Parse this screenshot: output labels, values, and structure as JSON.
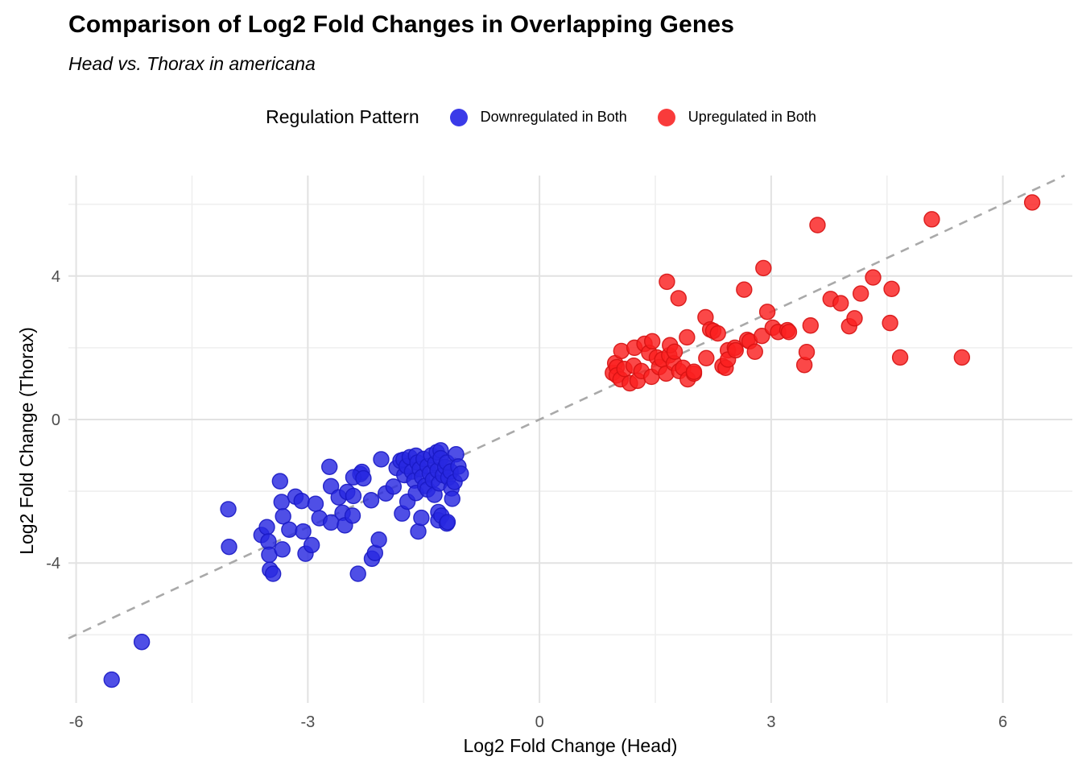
{
  "title": "Comparison of Log2 Fold Changes in Overlapping Genes",
  "subtitle": "Head vs. Thorax in americana",
  "legend": {
    "title": "Regulation Pattern",
    "items": [
      {
        "label": "Downregulated in Both",
        "color": "#3A3AE8"
      },
      {
        "label": "Upregulated in Both",
        "color": "#F93B3B"
      }
    ]
  },
  "chart_data": {
    "type": "scatter",
    "title": "Comparison of Log2 Fold Changes in Overlapping Genes",
    "subtitle": "Head vs. Thorax in americana",
    "xlabel": "Log2 Fold Change (Head)",
    "ylabel": "Log2 Fold Change (Thorax)",
    "xlim": [
      -6.1,
      6.9
    ],
    "ylim": [
      -7.9,
      6.8
    ],
    "x_major_ticks": [
      -6,
      -3,
      0,
      3,
      6
    ],
    "x_minor_ticks": [
      -4.5,
      -1.5,
      1.5,
      4.5
    ],
    "y_major_ticks": [
      -4,
      0,
      4
    ],
    "y_minor_ticks": [
      -6,
      -2,
      2,
      6
    ],
    "grid": true,
    "legend_position": "top",
    "identity_line": {
      "style": "dashed",
      "color": "#A9A9A9",
      "from": [
        -6.1,
        -6.1
      ],
      "to": [
        6.8,
        6.8
      ]
    },
    "series": [
      {
        "name": "Downregulated in Both",
        "color": "#2828E0",
        "stroke": "#1A1AC4",
        "points": [
          [
            -5.54,
            -7.25
          ],
          [
            -5.15,
            -6.2
          ],
          [
            -4.03,
            -2.5
          ],
          [
            -4.02,
            -3.55
          ],
          [
            -3.6,
            -3.22
          ],
          [
            -3.53,
            -3.0
          ],
          [
            -3.51,
            -3.4
          ],
          [
            -3.5,
            -3.77
          ],
          [
            -3.49,
            -4.19
          ],
          [
            -3.45,
            -4.3
          ],
          [
            -3.36,
            -1.72
          ],
          [
            -3.34,
            -2.3
          ],
          [
            -3.32,
            -2.7
          ],
          [
            -3.33,
            -3.62
          ],
          [
            -3.24,
            -3.07
          ],
          [
            -3.16,
            -2.15
          ],
          [
            -3.08,
            -2.27
          ],
          [
            -3.06,
            -3.12
          ],
          [
            -3.03,
            -3.74
          ],
          [
            -2.95,
            -3.5
          ],
          [
            -2.9,
            -2.35
          ],
          [
            -2.85,
            -2.75
          ],
          [
            -2.72,
            -1.32
          ],
          [
            -2.7,
            -1.86
          ],
          [
            -2.7,
            -2.87
          ],
          [
            -2.6,
            -2.17
          ],
          [
            -2.55,
            -2.6
          ],
          [
            -2.52,
            -2.95
          ],
          [
            -2.49,
            -2.02
          ],
          [
            -2.42,
            -2.68
          ],
          [
            -2.41,
            -2.13
          ],
          [
            -2.35,
            -4.3
          ],
          [
            -2.32,
            -1.52
          ],
          [
            -2.3,
            -1.46
          ],
          [
            -2.41,
            -1.61
          ],
          [
            -2.28,
            -1.64
          ],
          [
            -2.18,
            -2.25
          ],
          [
            -2.17,
            -3.88
          ],
          [
            -2.13,
            -3.72
          ],
          [
            -2.08,
            -3.35
          ],
          [
            -2.05,
            -1.11
          ],
          [
            -1.99,
            -2.06
          ],
          [
            -1.89,
            -1.87
          ],
          [
            -1.85,
            -1.35
          ],
          [
            -1.8,
            -1.15
          ],
          [
            -1.78,
            -2.62
          ],
          [
            -1.76,
            -1.12
          ],
          [
            -1.75,
            -1.55
          ],
          [
            -1.72,
            -1.3
          ],
          [
            -1.71,
            -2.29
          ],
          [
            -1.68,
            -1.05
          ],
          [
            -1.65,
            -1.45
          ],
          [
            -1.62,
            -1.7
          ],
          [
            -1.6,
            -1.01
          ],
          [
            -1.6,
            -2.05
          ],
          [
            -1.58,
            -1.2
          ],
          [
            -1.57,
            -3.12
          ],
          [
            -1.55,
            -1.38
          ],
          [
            -1.53,
            -2.74
          ],
          [
            -1.52,
            -1.6
          ],
          [
            -1.5,
            -1.1
          ],
          [
            -1.48,
            -1.85
          ],
          [
            -1.45,
            -1.3
          ],
          [
            -1.45,
            -1.95
          ],
          [
            -1.42,
            -1.5
          ],
          [
            -1.4,
            -1.0
          ],
          [
            -1.38,
            -1.68
          ],
          [
            -1.36,
            -2.1
          ],
          [
            -1.35,
            -1.22
          ],
          [
            -1.33,
            -0.91
          ],
          [
            -1.32,
            -1.42
          ],
          [
            -1.31,
            -2.58
          ],
          [
            -1.31,
            -2.81
          ],
          [
            -1.3,
            -1.78
          ],
          [
            -1.28,
            -0.86
          ],
          [
            -1.28,
            -1.08
          ],
          [
            -1.27,
            -2.68
          ],
          [
            -1.25,
            -1.55
          ],
          [
            -1.22,
            -1.32
          ],
          [
            -1.2,
            -1.2
          ],
          [
            -1.2,
            -2.9
          ],
          [
            -1.19,
            -2.86
          ],
          [
            -1.18,
            -1.62
          ],
          [
            -1.15,
            -1.45
          ],
          [
            -1.14,
            -1.92
          ],
          [
            -1.13,
            -2.21
          ],
          [
            -1.1,
            -1.74
          ],
          [
            -1.08,
            -0.97
          ],
          [
            -1.05,
            -1.31
          ],
          [
            -1.02,
            -1.51
          ]
        ]
      },
      {
        "name": "Upregulated in Both",
        "color": "#FA2020",
        "stroke": "#D61212",
        "points": [
          [
            0.95,
            1.3
          ],
          [
            0.98,
            1.57
          ],
          [
            1.0,
            1.46
          ],
          [
            1.0,
            1.23
          ],
          [
            1.05,
            1.12
          ],
          [
            1.06,
            1.91
          ],
          [
            1.1,
            1.41
          ],
          [
            1.17,
            1.01
          ],
          [
            1.22,
            1.5
          ],
          [
            1.23,
            2.0
          ],
          [
            1.27,
            1.08
          ],
          [
            1.32,
            1.35
          ],
          [
            1.36,
            2.11
          ],
          [
            1.42,
            1.86
          ],
          [
            1.45,
            1.19
          ],
          [
            1.46,
            2.18
          ],
          [
            1.52,
            1.73
          ],
          [
            1.55,
            1.46
          ],
          [
            1.59,
            1.67
          ],
          [
            1.64,
            1.28
          ],
          [
            1.65,
            3.84
          ],
          [
            1.68,
            1.79
          ],
          [
            1.69,
            2.07
          ],
          [
            1.74,
            1.57
          ],
          [
            1.75,
            1.89
          ],
          [
            1.8,
            3.38
          ],
          [
            1.81,
            1.35
          ],
          [
            1.86,
            1.44
          ],
          [
            1.91,
            2.29
          ],
          [
            1.92,
            1.12
          ],
          [
            2.0,
            1.28
          ],
          [
            2.0,
            1.33
          ],
          [
            2.15,
            2.85
          ],
          [
            2.16,
            1.71
          ],
          [
            2.21,
            2.51
          ],
          [
            2.25,
            2.47
          ],
          [
            2.31,
            2.4
          ],
          [
            2.37,
            1.49
          ],
          [
            2.41,
            1.44
          ],
          [
            2.44,
            1.93
          ],
          [
            2.44,
            1.67
          ],
          [
            2.53,
            2.0
          ],
          [
            2.54,
            1.93
          ],
          [
            2.65,
            3.62
          ],
          [
            2.69,
            2.22
          ],
          [
            2.72,
            2.18
          ],
          [
            2.79,
            1.89
          ],
          [
            2.88,
            2.33
          ],
          [
            2.9,
            4.22
          ],
          [
            2.95,
            3.0
          ],
          [
            3.02,
            2.56
          ],
          [
            3.09,
            2.44
          ],
          [
            3.21,
            2.49
          ],
          [
            3.23,
            2.44
          ],
          [
            3.43,
            1.52
          ],
          [
            3.46,
            1.88
          ],
          [
            3.51,
            2.62
          ],
          [
            3.6,
            5.42
          ],
          [
            3.77,
            3.36
          ],
          [
            3.9,
            3.24
          ],
          [
            4.01,
            2.6
          ],
          [
            4.08,
            2.82
          ],
          [
            4.16,
            3.51
          ],
          [
            4.32,
            3.96
          ],
          [
            4.54,
            2.69
          ],
          [
            4.56,
            3.64
          ],
          [
            4.67,
            1.73
          ],
          [
            5.08,
            5.58
          ],
          [
            5.47,
            1.73
          ],
          [
            6.38,
            6.05
          ]
        ]
      }
    ]
  }
}
